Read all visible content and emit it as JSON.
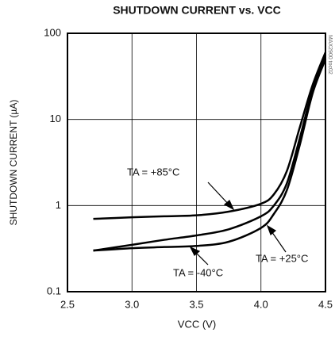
{
  "chart_data": {
    "type": "line",
    "title": "SHUTDOWN CURRENT vs. VCC",
    "x_label": "VCC (V)",
    "y_label": "SHUTDOWN CURRENT (µA)",
    "watermark": "MAX2900 toc02",
    "x": [
      2.7,
      3.0,
      3.25,
      3.5,
      3.75,
      4.0,
      4.1,
      4.2,
      4.3,
      4.4,
      4.5
    ],
    "series": [
      {
        "name": "TA = +85°C",
        "color": "#000000",
        "values": [
          0.7,
          0.73,
          0.75,
          0.77,
          0.85,
          1.05,
          1.35,
          2.5,
          8,
          25,
          60
        ]
      },
      {
        "name": "TA = +25°C",
        "color": "#000000",
        "values": [
          0.3,
          0.35,
          0.4,
          0.45,
          0.53,
          0.75,
          1.0,
          1.8,
          6,
          22,
          55
        ]
      },
      {
        "name": "TA = -40°C",
        "color": "#000000",
        "values": [
          0.3,
          0.32,
          0.33,
          0.34,
          0.38,
          0.55,
          0.8,
          1.5,
          5,
          20,
          50
        ]
      }
    ],
    "xlim": [
      2.5,
      4.5
    ],
    "xticks": [
      2.5,
      {
        "value": 3,
        "label": "3.0"
      },
      3.5,
      {
        "value": 4,
        "label": "4.0"
      },
      4.5
    ],
    "ylim": [
      0.1,
      100
    ],
    "yticks": [
      0.1,
      1,
      10,
      100
    ],
    "ylog": true,
    "grid": true
  }
}
